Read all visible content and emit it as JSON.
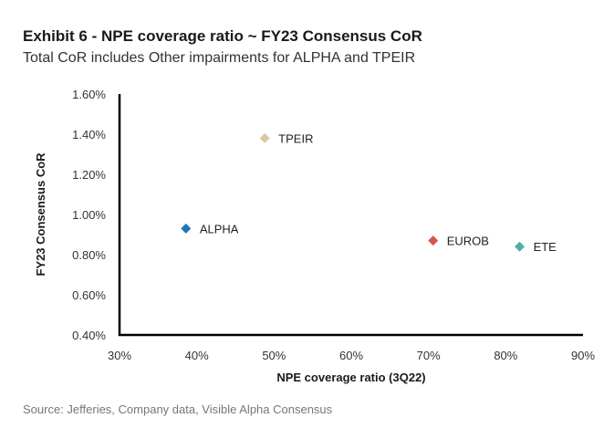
{
  "title": "Exhibit 6 - NPE coverage ratio ~ FY23 Consensus CoR",
  "subtitle": "Total CoR includes Other impairments for ALPHA and TPEIR",
  "source": "Source: Jefferies, Company data, Visible Alpha Consensus",
  "chart_data": {
    "type": "scatter",
    "title": "Exhibit 6 - NPE coverage ratio ~ FY23 Consensus CoR",
    "subtitle": "Total CoR includes Other impairments for ALPHA and TPEIR",
    "xlabel": "NPE coverage ratio (3Q22)",
    "ylabel": "FY23 Consensus CoR",
    "xlim": [
      30,
      90
    ],
    "ylim": [
      0.4,
      1.6
    ],
    "x_ticks": [
      30,
      40,
      50,
      60,
      70,
      80,
      90
    ],
    "y_ticks": [
      0.4,
      0.6,
      0.8,
      1.0,
      1.2,
      1.4,
      1.6
    ],
    "x_tick_labels": [
      "30%",
      "40%",
      "50%",
      "60%",
      "70%",
      "80%",
      "90%"
    ],
    "y_tick_labels": [
      "0.40%",
      "0.60%",
      "0.80%",
      "1.00%",
      "1.20%",
      "1.40%",
      "1.60%"
    ],
    "grid": false,
    "marker": "diamond",
    "points": [
      {
        "label": "TPEIR",
        "x": 48.8,
        "y": 1.38,
        "color": "#d9c9a0"
      },
      {
        "label": "ALPHA",
        "x": 38.6,
        "y": 0.93,
        "color": "#1f77b4"
      },
      {
        "label": "EUROB",
        "x": 70.6,
        "y": 0.87,
        "color": "#d9534f"
      },
      {
        "label": "ETE",
        "x": 81.8,
        "y": 0.84,
        "color": "#4fb0a0"
      }
    ]
  }
}
